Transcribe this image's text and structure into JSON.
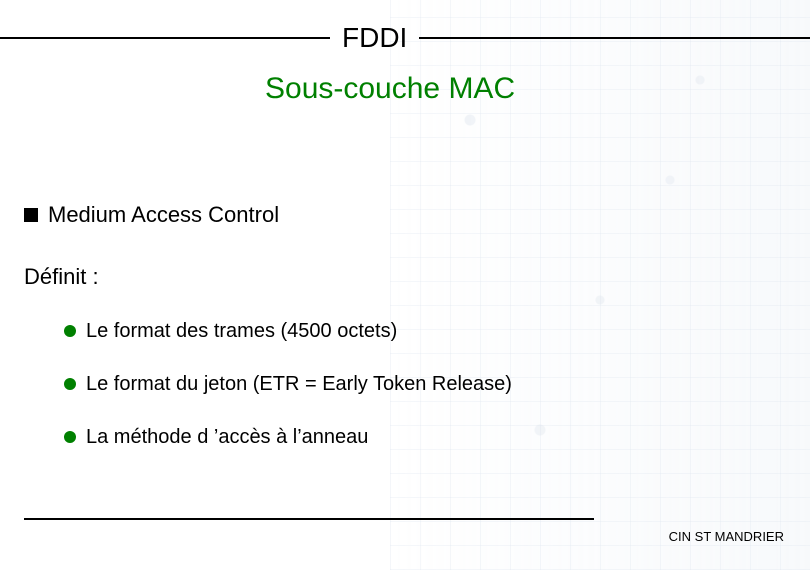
{
  "header": {
    "title": "FDDI",
    "subtitle": "Sous-couche MAC",
    "subtitle_color": "#008000"
  },
  "content": {
    "heading": "Medium Access Control",
    "definit_label": "Définit :",
    "bullets": [
      "Le format des trames (4500 octets)",
      "Le format du jeton (ETR = Early Token Release)",
      "La méthode d ’accès à l’anneau"
    ],
    "bullet_color": "#008000"
  },
  "footer": {
    "org": "CIN ST MANDRIER"
  }
}
